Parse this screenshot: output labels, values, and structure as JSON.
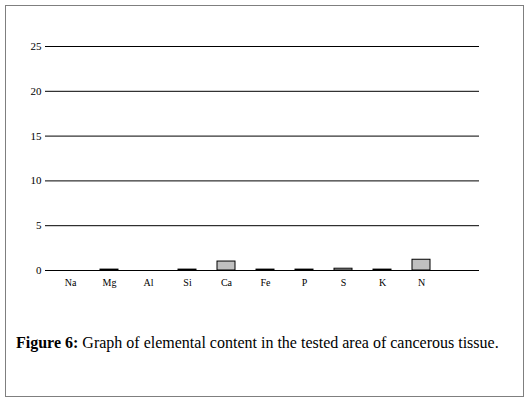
{
  "chart_data": {
    "type": "bar",
    "caption": "Figure 6: Graph of elemental content in the tested area of cancerous tissue.",
    "categories": [
      "Na",
      "Mg",
      "Al",
      "Si",
      "Ca",
      "Fe",
      "P",
      "S",
      "K",
      "N"
    ],
    "values": [
      0,
      0.1,
      0,
      0.1,
      1.0,
      0.1,
      0.1,
      0.2,
      0.1,
      1.2
    ],
    "color": "#c0c0c0",
    "ylim": [
      0,
      25
    ],
    "yticks": [
      0,
      5,
      10,
      15,
      20,
      25
    ],
    "grid": true
  }
}
